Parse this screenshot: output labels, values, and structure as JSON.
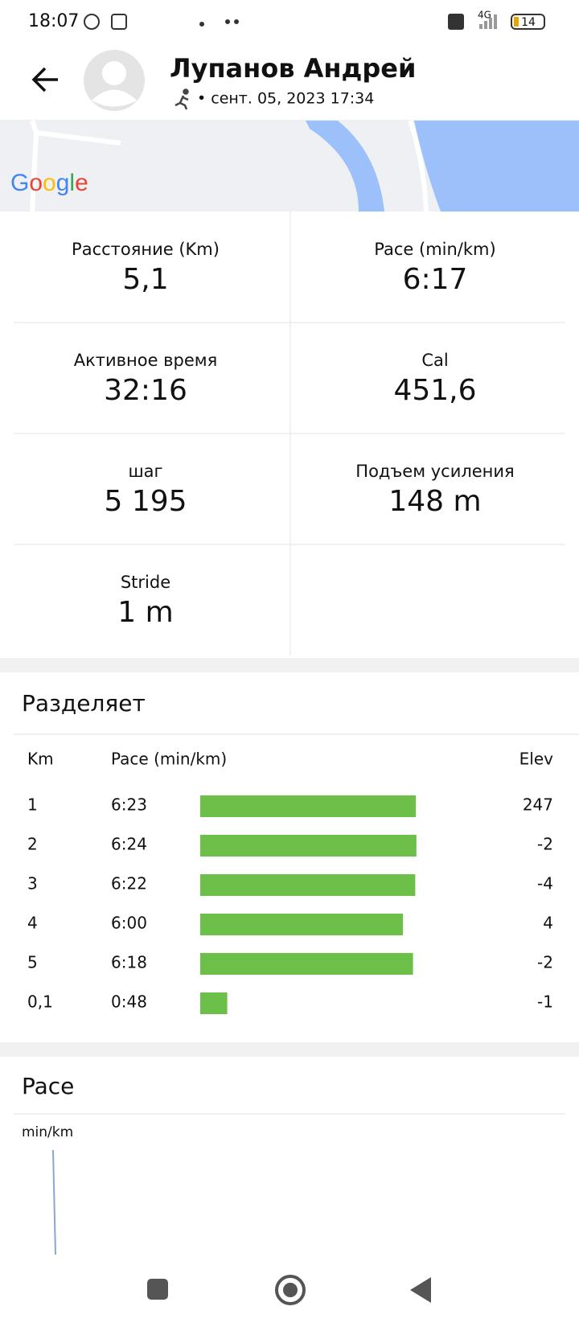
{
  "status_bar": {
    "time": "18:07",
    "network": "4G",
    "battery": "14"
  },
  "header": {
    "name": "Лупанов Андрей",
    "subtitle": "• сент. 05, 2023 17:34"
  },
  "map": {
    "logo": "Google"
  },
  "stats": [
    {
      "label": "Расстояние (Km)",
      "value": "5,1"
    },
    {
      "label": "Pace (min/km)",
      "value": "6:17"
    },
    {
      "label": "Активное время",
      "value": "32:16"
    },
    {
      "label": "Cal",
      "value": "451,6"
    },
    {
      "label": "шаг",
      "value": "5 195"
    },
    {
      "label": "Подъем усиления",
      "value": "148 m"
    },
    {
      "label": "Stride",
      "value": "1 m"
    }
  ],
  "splits": {
    "title": "Разделяет",
    "columns": [
      "Km",
      "Pace (min/km)",
      "Elev"
    ],
    "rows": [
      [
        "1",
        "6:23",
        "247"
      ],
      [
        "2",
        "6:24",
        "-2"
      ],
      [
        "3",
        "6:22",
        "-4"
      ],
      [
        "4",
        "6:00",
        "4"
      ],
      [
        "5",
        "6:18",
        "-2"
      ],
      [
        "0,1",
        "0:48",
        "-1"
      ]
    ]
  },
  "pace_chart": {
    "title": "Pace",
    "unit": "min/km"
  }
}
